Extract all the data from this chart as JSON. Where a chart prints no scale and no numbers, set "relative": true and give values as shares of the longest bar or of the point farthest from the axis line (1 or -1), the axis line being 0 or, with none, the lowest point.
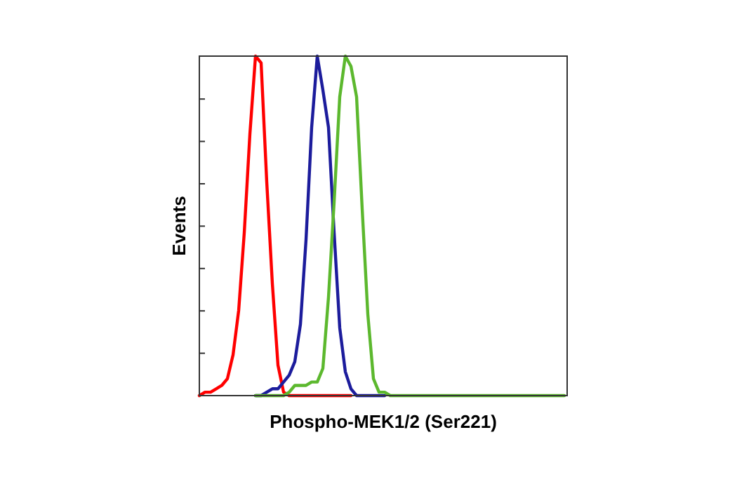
{
  "chart_data": {
    "type": "line",
    "relative": true,
    "xlabel": "Phospho-MEK1/2 (Ser221)",
    "ylabel": "Events",
    "grid": false,
    "marker": "none",
    "line_style": "solid",
    "categories": [
      null,
      null,
      null,
      null,
      null,
      null,
      null,
      null,
      null,
      null,
      null,
      null,
      null,
      null,
      null,
      null,
      null,
      null,
      null,
      null,
      null,
      null,
      null,
      null,
      null,
      null,
      null,
      null,
      null,
      null,
      null,
      null,
      null,
      null,
      null,
      null,
      null,
      null,
      null,
      null,
      null,
      null,
      null,
      null,
      null,
      null,
      null,
      null,
      null,
      null,
      null,
      null,
      null,
      null,
      null,
      null,
      null,
      null,
      null,
      null,
      null,
      null,
      null,
      null,
      null,
      null
    ],
    "series": [
      {
        "color": "#ff0000",
        "values": [
          0,
          0.01,
          0.01,
          0.02,
          0.03,
          0.05,
          0.12,
          0.25,
          0.48,
          0.77,
          1,
          0.98,
          0.63,
          0.33,
          0.09,
          0.01,
          0,
          0,
          0,
          0,
          0,
          0,
          0,
          0,
          0,
          0,
          0,
          0,
          null,
          null,
          null,
          null,
          null,
          null,
          null,
          null,
          null,
          null,
          null,
          null,
          null,
          null,
          null,
          null,
          null,
          null,
          null,
          null,
          null,
          null,
          null,
          null,
          null,
          null,
          null,
          null,
          null,
          null,
          null,
          null,
          null,
          null,
          null,
          null,
          null,
          null
        ]
      },
      {
        "color": "#1c1c9c",
        "values": [
          null,
          null,
          null,
          null,
          null,
          null,
          null,
          null,
          null,
          null,
          0,
          0,
          0.01,
          0.02,
          0.02,
          0.04,
          0.06,
          0.1,
          0.21,
          0.46,
          0.79,
          1,
          0.9,
          0.79,
          0.48,
          0.2,
          0.07,
          0.02,
          0,
          0,
          0,
          0,
          0,
          0,
          null,
          null,
          null,
          null,
          null,
          null,
          null,
          null,
          null,
          null,
          null,
          null,
          null,
          null,
          null,
          null,
          null,
          null,
          null,
          null,
          null,
          null,
          null,
          null,
          null,
          null,
          null,
          null,
          null,
          null,
          null,
          null
        ]
      },
      {
        "color": "#5cb82e",
        "values": [
          null,
          null,
          null,
          null,
          null,
          null,
          null,
          null,
          null,
          null,
          0,
          0,
          0,
          0,
          0,
          0,
          0.01,
          0.03,
          0.03,
          0.03,
          0.04,
          0.04,
          0.08,
          0.29,
          0.57,
          0.88,
          1,
          0.97,
          0.88,
          0.55,
          0.24,
          0.05,
          0.01,
          0.01,
          0,
          0,
          0,
          0,
          0,
          0,
          0,
          0,
          0,
          0,
          0,
          0,
          0,
          0,
          0,
          0,
          0,
          0,
          0,
          0,
          0,
          0,
          0,
          0,
          0,
          0,
          0,
          0,
          0,
          0,
          0,
          0
        ]
      }
    ]
  }
}
